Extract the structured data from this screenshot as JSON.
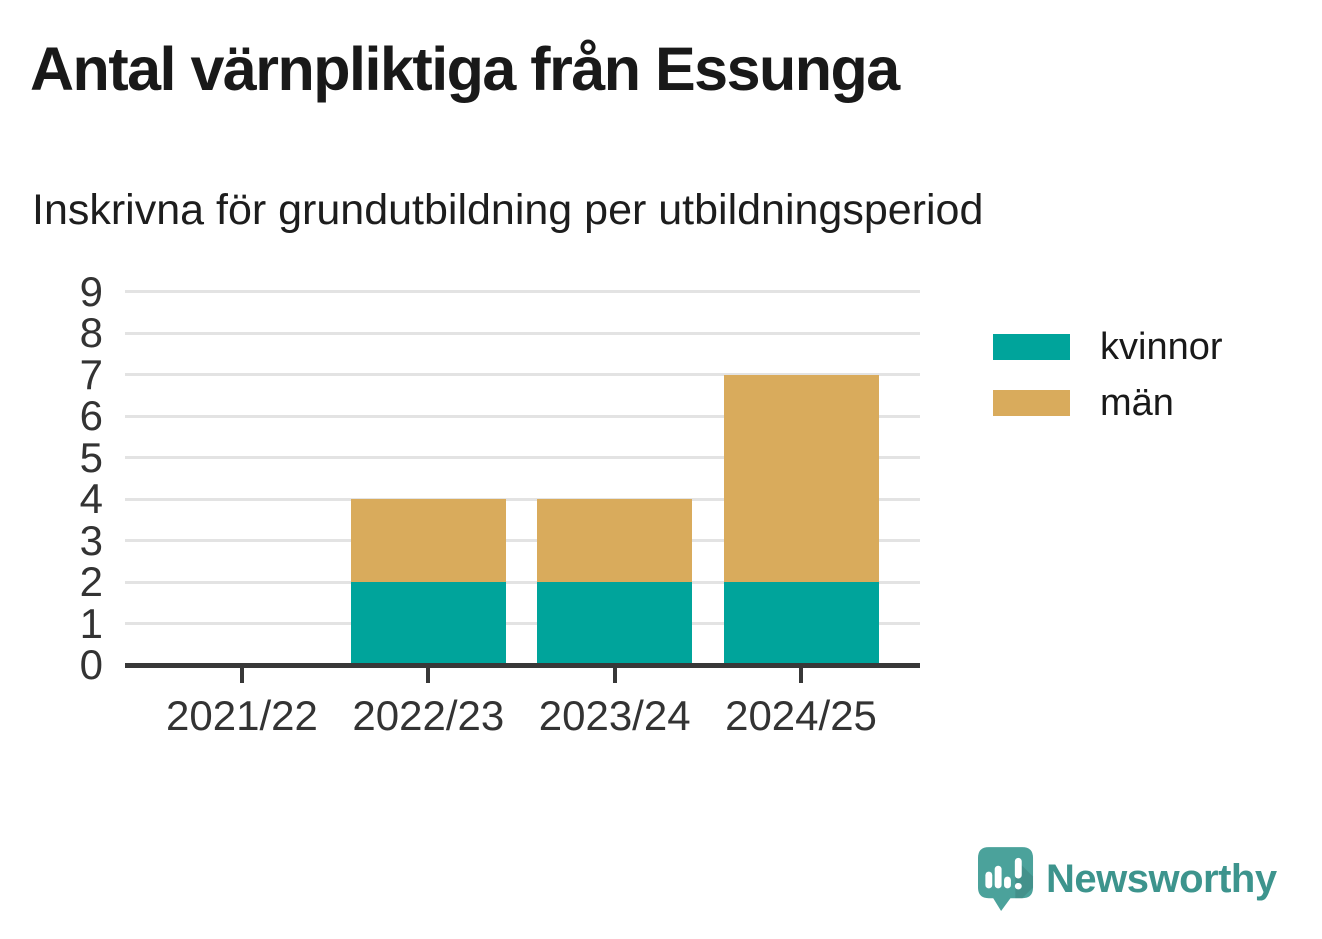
{
  "chart_data": {
    "type": "bar",
    "stacked": true,
    "title": "Antal värnpliktiga från Essunga",
    "subtitle": "Inskrivna för grundutbildning per utbildningsperiod",
    "categories": [
      "2021/22",
      "2022/23",
      "2023/24",
      "2024/25"
    ],
    "series": [
      {
        "name": "kvinnor",
        "color": "#00a49b",
        "values": [
          0,
          2,
          2,
          2
        ]
      },
      {
        "name": "män",
        "color": "#d9ab5c",
        "values": [
          0,
          2,
          2,
          5
        ]
      }
    ],
    "stacked_totals": [
      0,
      4,
      4,
      7
    ],
    "ylim": [
      0,
      9
    ],
    "yticks": [
      0,
      1,
      2,
      3,
      4,
      5,
      6,
      7,
      8,
      9
    ],
    "xlabel": "",
    "ylabel": "",
    "grid": true,
    "legend_position": "right"
  },
  "branding": {
    "name": "Newsworthy",
    "text_color": "#3d948d",
    "icon": "newsworthy-speech-bubble-bar-chart-icon",
    "icon_color": "#4ba29b"
  }
}
